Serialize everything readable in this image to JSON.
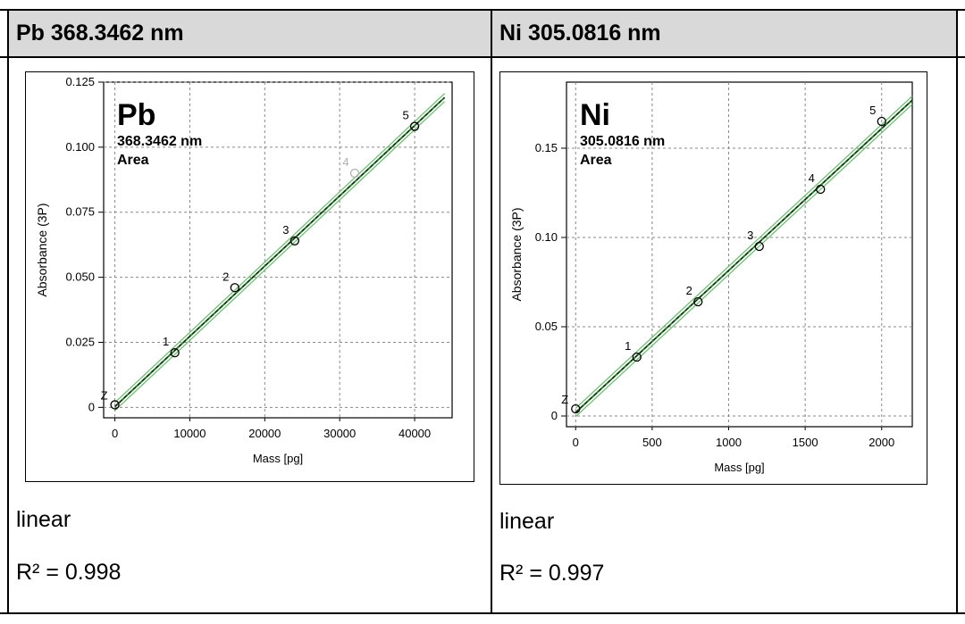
{
  "columns": [
    {
      "header": "Pb 368.3462 nm",
      "fit_label": "linear",
      "r2_label": "R² = 0.998",
      "chart_data": {
        "type": "scatter",
        "element": "Pb",
        "wavelength": "368.3462 nm",
        "mode": "Area",
        "xlabel": "Mass [pg]",
        "ylabel": "Absorbance (3P)",
        "xlim": [
          -1500,
          45000
        ],
        "ylim": [
          -0.004,
          0.125
        ],
        "xticks": [
          0,
          10000,
          20000,
          30000,
          40000
        ],
        "xtick_labels": [
          "0",
          "10000",
          "20000",
          "30000",
          "40000"
        ],
        "yticks": [
          0,
          0.025,
          0.05,
          0.075,
          0.1,
          0.125
        ],
        "ytick_labels": [
          "0",
          "0.025",
          "0.050",
          "0.075",
          "0.100",
          "0.125"
        ],
        "grid": true,
        "points": [
          {
            "label": "Z",
            "x": 0,
            "y": 0.001,
            "faded": false
          },
          {
            "label": "1",
            "x": 8000,
            "y": 0.021,
            "faded": false
          },
          {
            "label": "2",
            "x": 16000,
            "y": 0.046,
            "faded": false
          },
          {
            "label": "3",
            "x": 24000,
            "y": 0.064,
            "faded": false
          },
          {
            "label": "4",
            "x": 32000,
            "y": 0.09,
            "faded": true
          },
          {
            "label": "5",
            "x": 40000,
            "y": 0.108,
            "faded": false
          }
        ],
        "fit": {
          "slope": 2.7e-06,
          "intercept": 0.0003,
          "x_range": [
            0,
            44000
          ]
        },
        "colors": {
          "fit": "#2e7d32",
          "band": "#66bb6a",
          "points": "#000000",
          "faded": "#b0b0b0"
        }
      }
    },
    {
      "header": "Ni 305.0816 nm",
      "fit_label": "linear",
      "r2_label": "R² = 0.997",
      "chart_data": {
        "type": "scatter",
        "element": "Ni",
        "wavelength": "305.0816 nm",
        "mode": "Area",
        "xlabel": "Mass [pg]",
        "ylabel": "Absorbance (3P)",
        "xlim": [
          -60,
          2200
        ],
        "ylim": [
          -0.006,
          0.187
        ],
        "xticks": [
          0,
          500,
          1000,
          1500,
          2000
        ],
        "xtick_labels": [
          "0",
          "500",
          "1000",
          "1500",
          "2000"
        ],
        "yticks": [
          0,
          0.05,
          0.1,
          0.15
        ],
        "ytick_labels": [
          "0",
          "0.05",
          "0.10",
          "0.15"
        ],
        "grid": true,
        "points": [
          {
            "label": "Z",
            "x": 0,
            "y": 0.004,
            "faded": false
          },
          {
            "label": "1",
            "x": 400,
            "y": 0.033,
            "faded": false
          },
          {
            "label": "2",
            "x": 800,
            "y": 0.064,
            "faded": false
          },
          {
            "label": "3",
            "x": 1200,
            "y": 0.095,
            "faded": false
          },
          {
            "label": "4",
            "x": 1600,
            "y": 0.127,
            "faded": false
          },
          {
            "label": "5",
            "x": 2000,
            "y": 0.165,
            "faded": false
          }
        ],
        "fit": {
          "slope": 7.95e-05,
          "intercept": 0.002,
          "x_range": [
            0,
            2200
          ]
        },
        "colors": {
          "fit": "#2e7d32",
          "band": "#66bb6a",
          "points": "#000000",
          "faded": "#b0b0b0"
        }
      }
    }
  ]
}
